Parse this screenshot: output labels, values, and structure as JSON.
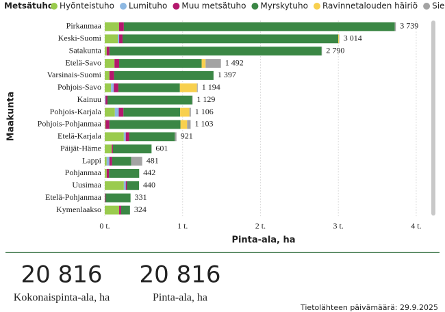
{
  "chart_data": {
    "type": "stacked-bar-horizontal",
    "legend_title": "Metsätuho",
    "y_label": "Maakunta",
    "x_label": "Pinta-ala, ha",
    "categories": [
      "Pirkanmaa",
      "Keski-Suomi",
      "Satakunta",
      "Etelä-Savo",
      "Varsinais-Suomi",
      "Pohjois-Savo",
      "Kainuu",
      "Pohjois-Karjala",
      "Pohjois-Pohjanmaa",
      "Etelä-Karjala",
      "Päijät-Häme",
      "Lappi",
      "Pohjanmaa",
      "Uusimaa",
      "Etelä-Pohjanmaa",
      "Kymenlaakso"
    ],
    "series": [
      {
        "name": "Hyönteistuho",
        "color": "#9acb4e",
        "values": [
          184,
          167,
          25,
          125,
          60,
          80,
          0,
          130,
          10,
          245,
          90,
          25,
          25,
          245,
          0,
          185
        ]
      },
      {
        "name": "Lumituho",
        "color": "#8db8e2",
        "values": [
          0,
          18,
          0,
          0,
          0,
          35,
          10,
          50,
          0,
          25,
          0,
          35,
          0,
          25,
          0,
          0
        ]
      },
      {
        "name": "Muu metsätuho",
        "color": "#b3186d",
        "values": [
          61,
          44,
          35,
          60,
          60,
          60,
          25,
          60,
          50,
          45,
          15,
          35,
          30,
          15,
          10,
          25
        ]
      },
      {
        "name": "Myrskytuho",
        "color": "#3b8745",
        "values": [
          3480,
          2770,
          2725,
          1060,
          1277,
          790,
          1089,
          728,
          913,
          585,
          496,
          245,
          387,
          155,
          321,
          114
        ]
      },
      {
        "name": "Ravinnetalouden häiriö",
        "color": "#f8d04e",
        "values": [
          0,
          10,
          0,
          50,
          0,
          219,
          0,
          120,
          85,
          0,
          0,
          0,
          0,
          0,
          0,
          0
        ]
      },
      {
        "name": "Sienituho",
        "color": "#a3a3a3",
        "values": [
          14,
          5,
          5,
          197,
          0,
          10,
          5,
          18,
          45,
          21,
          0,
          141,
          0,
          0,
          0,
          0
        ]
      }
    ],
    "totals": {
      "values": [
        3739,
        3014,
        2790,
        1492,
        1397,
        1194,
        1129,
        1106,
        1103,
        921,
        601,
        481,
        442,
        440,
        331,
        324
      ],
      "value_labels": [
        "3 739",
        "3 014",
        "2 790",
        "1 492",
        "1 397",
        "1 194",
        "1 129",
        "1 106",
        "1 103",
        "921",
        "601",
        "481",
        "442",
        "440",
        "331",
        "324"
      ]
    },
    "xlim": [
      0,
      4150
    ],
    "xticks": [
      {
        "value": 0,
        "label": "0 t."
      },
      {
        "value": 1000,
        "label": "1 t."
      },
      {
        "value": 2000,
        "label": "2 t."
      },
      {
        "value": 3000,
        "label": "3 t."
      },
      {
        "value": 4000,
        "label": "4 t."
      }
    ],
    "grid": true
  },
  "cards": [
    {
      "value": "20 816",
      "label": "Kokonaispinta-ala, ha"
    },
    {
      "value": "20 816",
      "label": "Pinta-ala, ha"
    }
  ],
  "footer": "Tietolähteen päivämäärä: 29.9.2025"
}
